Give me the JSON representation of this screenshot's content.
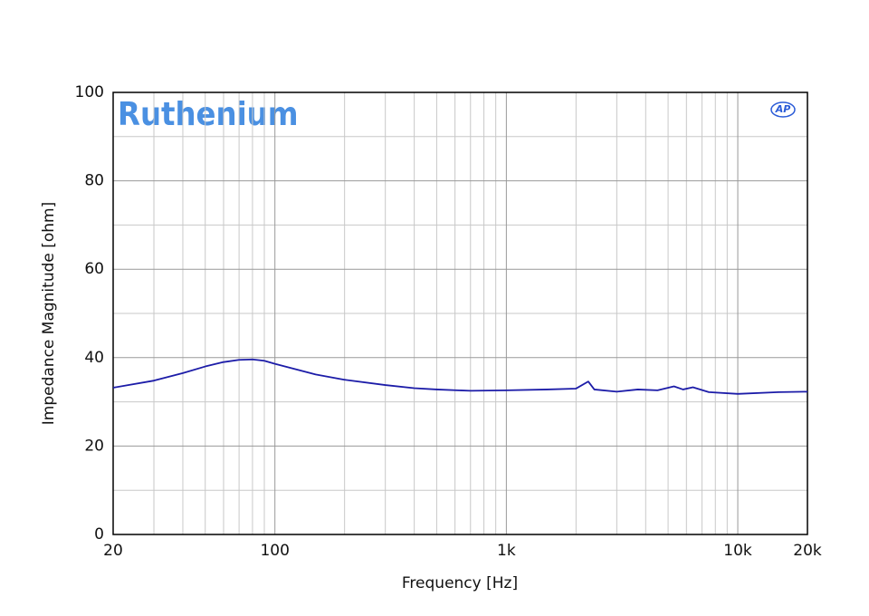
{
  "chart_data": {
    "type": "line",
    "title": "Ruthenium",
    "logo": "AP",
    "x_label": "Frequency [Hz]",
    "y_label": "Impedance Magnitude [ohm]",
    "x_log": true,
    "grid": true,
    "xlim": [
      20,
      20000
    ],
    "xticks": [
      20,
      100,
      {
        "value": 1000,
        "label": "1k"
      },
      {
        "value": 10000,
        "label": "10k"
      },
      {
        "value": 20000,
        "label": "20k"
      }
    ],
    "xminor": [
      30,
      40,
      50,
      60,
      70,
      80,
      90,
      200,
      300,
      400,
      500,
      600,
      700,
      800,
      900,
      2000,
      3000,
      4000,
      5000,
      6000,
      7000,
      8000,
      9000
    ],
    "ylim": [
      0,
      100
    ],
    "yticks": [
      0,
      20,
      40,
      60,
      80,
      100
    ],
    "yminor": [
      10,
      30,
      50,
      70,
      90
    ],
    "x": [
      20,
      30,
      40,
      50,
      60,
      70,
      80,
      90,
      100,
      150,
      200,
      300,
      400,
      500,
      700,
      1000,
      1500,
      2000,
      2260,
      2400,
      3000,
      3700,
      4500,
      5300,
      5800,
      6400,
      7500,
      10000,
      15000,
      20000
    ],
    "series": [
      {
        "name": "Ruthenium",
        "color": "#1c1ca8",
        "values": [
          33.2,
          34.8,
          36.5,
          38,
          39,
          39.5,
          39.6,
          39.3,
          38.6,
          36.2,
          35,
          33.8,
          33.1,
          32.8,
          32.5,
          32.6,
          32.8,
          33,
          34.6,
          32.8,
          32.3,
          32.8,
          32.6,
          33.5,
          32.8,
          33.3,
          32.2,
          31.8,
          32.2,
          32.3
        ]
      }
    ]
  }
}
